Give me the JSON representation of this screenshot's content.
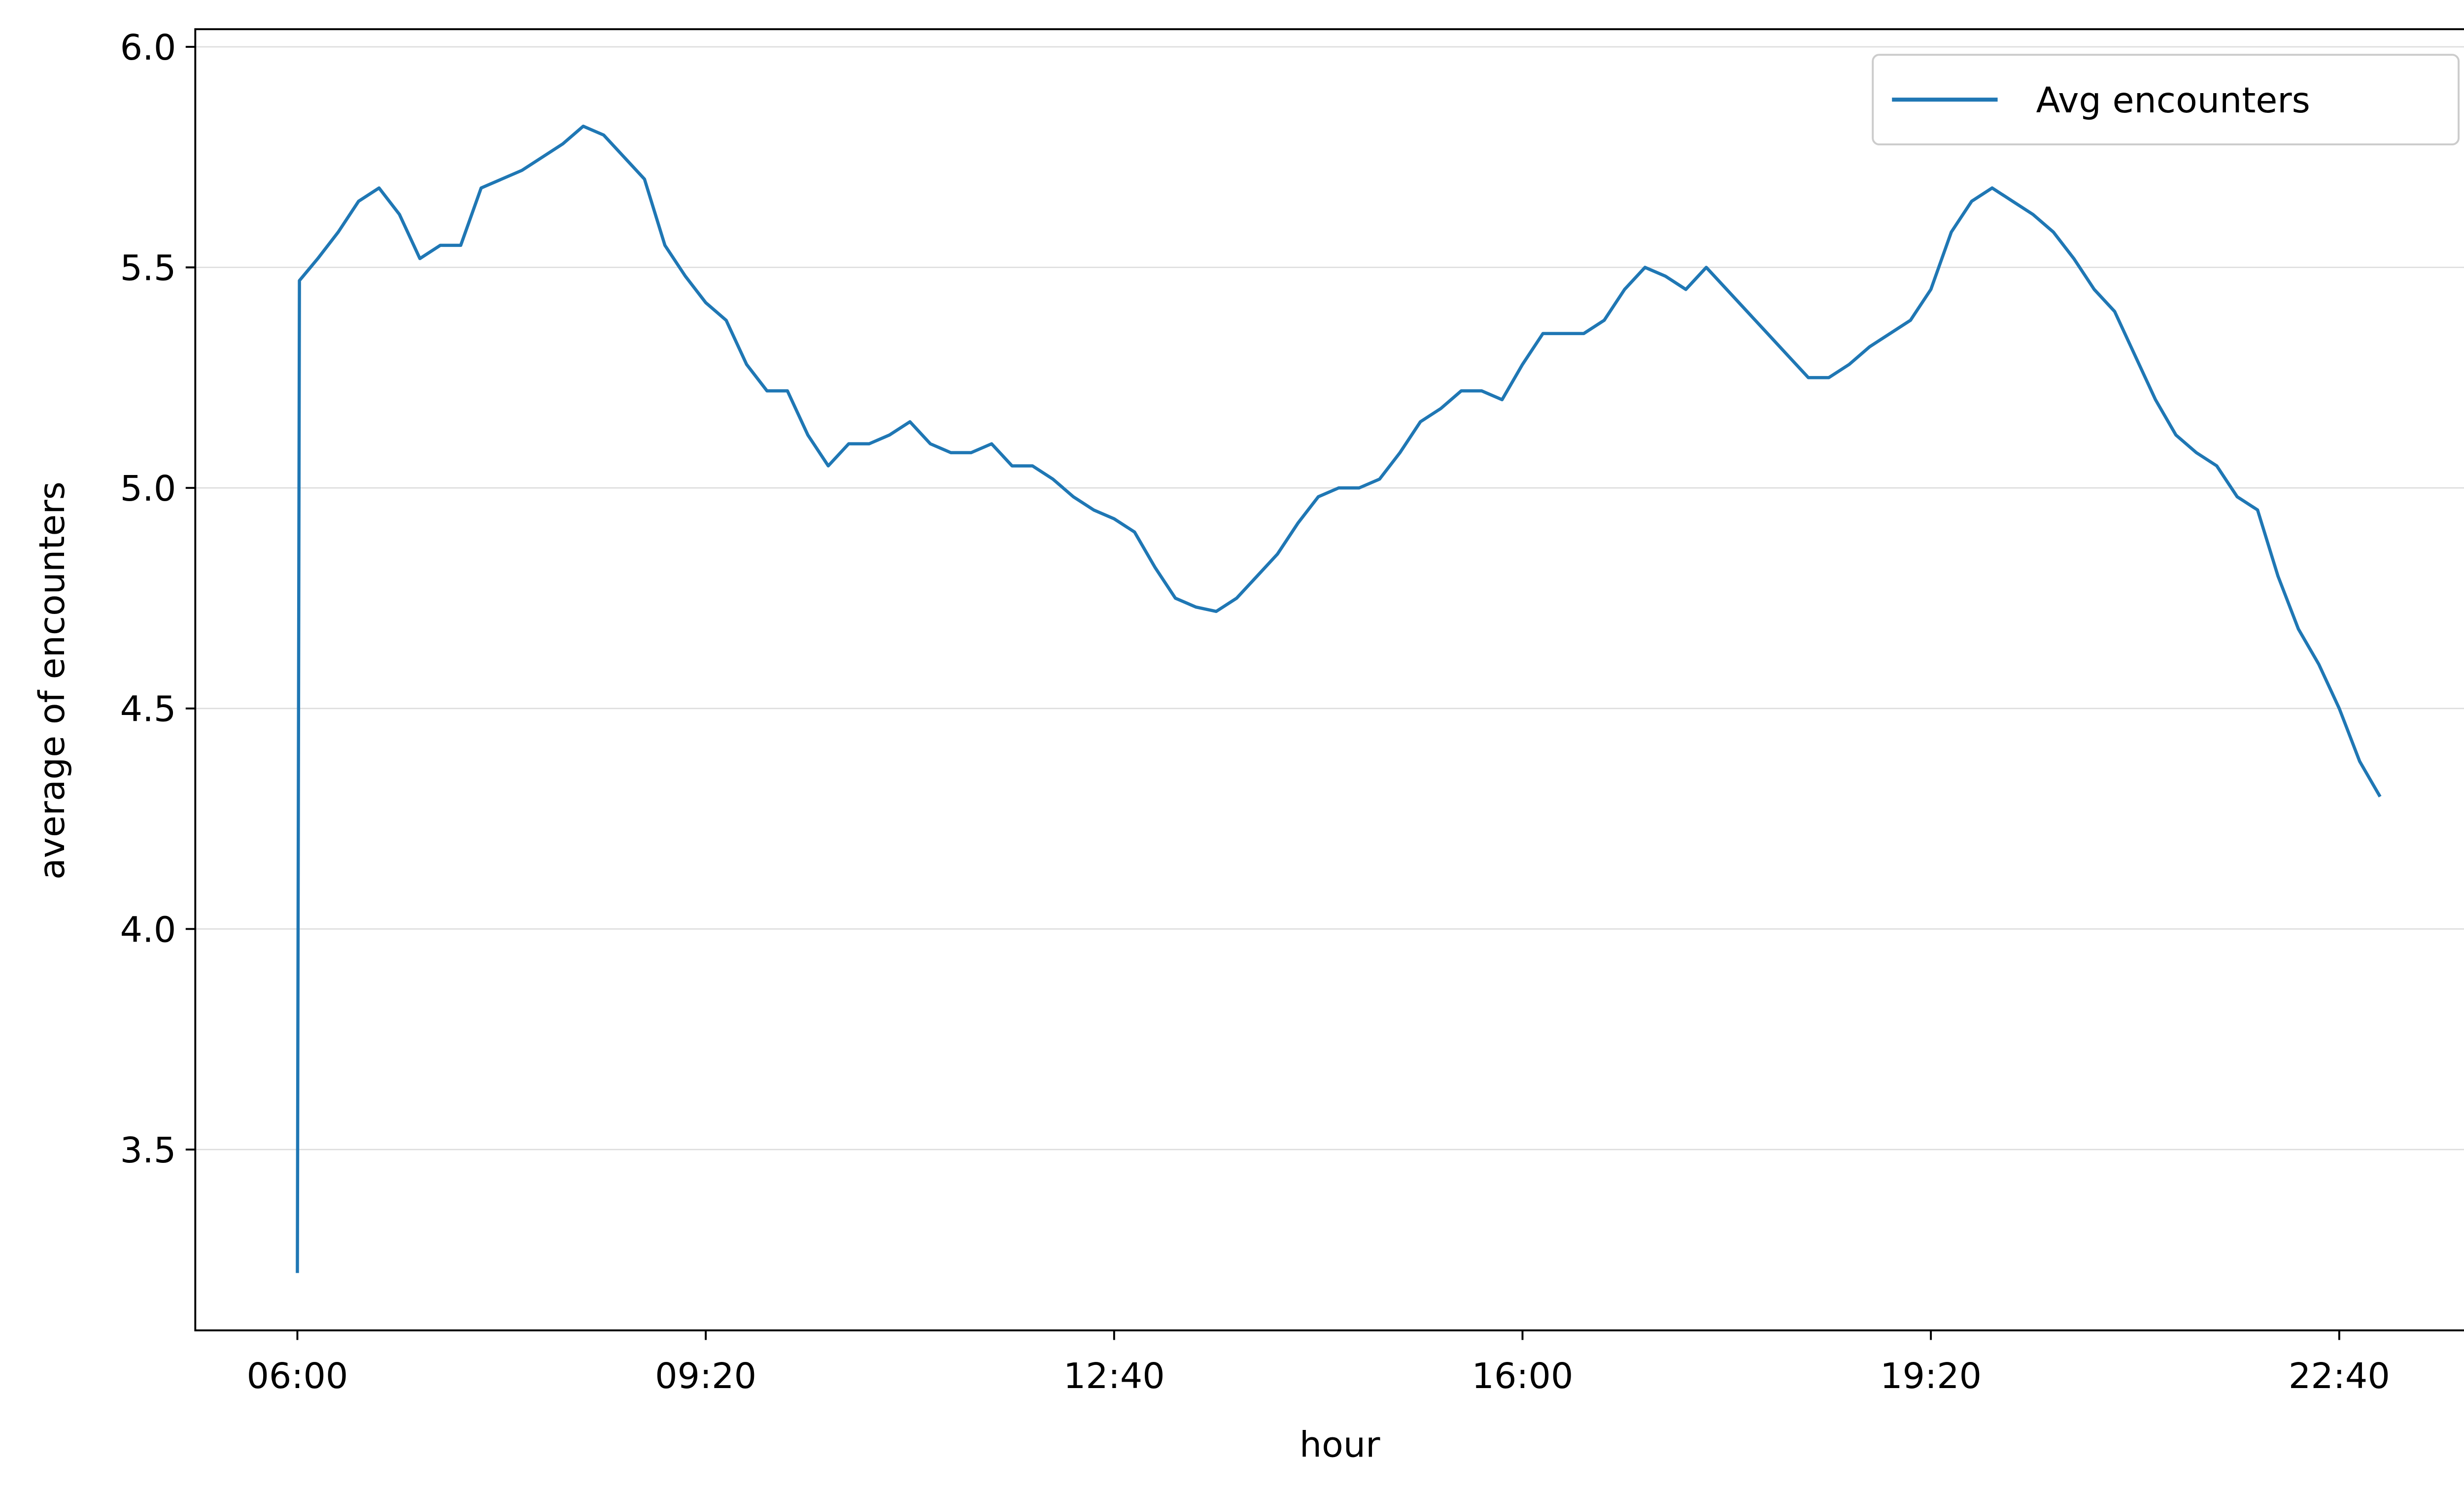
{
  "chart_data": {
    "type": "line",
    "x_label": "hour",
    "y_label": "average of encounters",
    "x": [
      "06:00",
      "06:01",
      "06:10",
      "06:20",
      "06:30",
      "06:40",
      "06:50",
      "07:00",
      "07:10",
      "07:20",
      "07:30",
      "07:40",
      "07:50",
      "08:00",
      "08:10",
      "08:20",
      "08:30",
      "08:40",
      "08:50",
      "09:00",
      "09:10",
      "09:20",
      "09:30",
      "09:40",
      "09:50",
      "10:00",
      "10:10",
      "10:20",
      "10:30",
      "10:40",
      "10:50",
      "11:00",
      "11:10",
      "11:20",
      "11:30",
      "11:40",
      "11:50",
      "12:00",
      "12:10",
      "12:20",
      "12:30",
      "12:40",
      "12:50",
      "13:00",
      "13:10",
      "13:20",
      "13:30",
      "13:40",
      "13:50",
      "14:00",
      "14:10",
      "14:20",
      "14:30",
      "14:40",
      "14:50",
      "15:00",
      "15:10",
      "15:20",
      "15:30",
      "15:40",
      "15:50",
      "16:00",
      "16:10",
      "16:20",
      "16:30",
      "16:40",
      "16:50",
      "17:00",
      "17:10",
      "17:20",
      "17:30",
      "17:40",
      "17:50",
      "18:00",
      "18:10",
      "18:20",
      "18:30",
      "18:40",
      "18:50",
      "19:00",
      "19:10",
      "19:20",
      "19:30",
      "19:40",
      "19:50",
      "20:00",
      "20:10",
      "20:20",
      "20:30",
      "20:40",
      "20:50",
      "21:00",
      "21:10",
      "21:20",
      "21:30",
      "21:40",
      "21:50",
      "22:00",
      "22:10",
      "22:20",
      "22:30",
      "22:40",
      "22:50",
      "23:00"
    ],
    "series": [
      {
        "name": "Avg encounters",
        "color": "#1f77b4",
        "values": [
          3.22,
          5.47,
          5.52,
          5.58,
          5.65,
          5.68,
          5.62,
          5.52,
          5.55,
          5.55,
          5.68,
          5.7,
          5.72,
          5.75,
          5.78,
          5.82,
          5.8,
          5.75,
          5.7,
          5.55,
          5.48,
          5.42,
          5.38,
          5.28,
          5.22,
          5.22,
          5.12,
          5.05,
          5.1,
          5.1,
          5.12,
          5.15,
          5.1,
          5.08,
          5.08,
          5.1,
          5.05,
          5.05,
          5.02,
          4.98,
          4.95,
          4.93,
          4.9,
          4.82,
          4.75,
          4.73,
          4.72,
          4.75,
          4.8,
          4.85,
          4.92,
          4.98,
          5.0,
          5.0,
          5.02,
          5.08,
          5.15,
          5.18,
          5.22,
          5.22,
          5.2,
          5.28,
          5.35,
          5.35,
          5.35,
          5.38,
          5.45,
          5.5,
          5.48,
          5.45,
          5.5,
          5.45,
          5.4,
          5.35,
          5.3,
          5.25,
          5.25,
          5.28,
          5.32,
          5.35,
          5.38,
          5.45,
          5.58,
          5.65,
          5.68,
          5.65,
          5.62,
          5.58,
          5.52,
          5.45,
          5.4,
          5.3,
          5.2,
          5.12,
          5.08,
          5.05,
          4.98,
          4.95,
          4.8,
          4.68,
          4.6,
          4.5,
          4.38,
          4.3
        ]
      }
    ],
    "xlim": [
      "05:10",
      "23:51"
    ],
    "xticks": [
      "06:00",
      "09:20",
      "12:40",
      "16:00",
      "19:20",
      "22:40"
    ],
    "ylim": [
      3.09,
      6.04
    ],
    "yticks": [
      3.5,
      {
        "value": 4,
        "label": "4.0"
      },
      4.5,
      {
        "value": 5,
        "label": "5.0"
      },
      5.5,
      {
        "value": 6,
        "label": "6.0"
      }
    ],
    "grid": true,
    "legend": "upper right"
  }
}
